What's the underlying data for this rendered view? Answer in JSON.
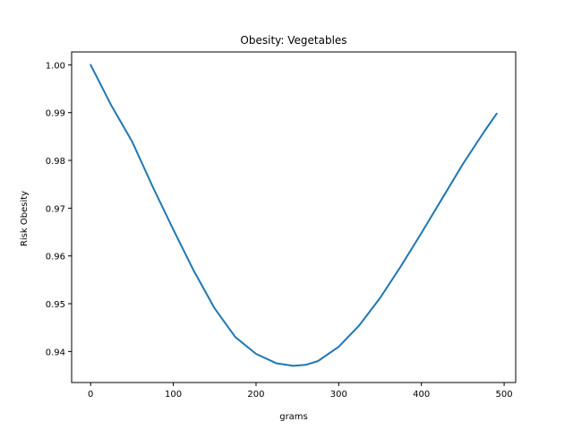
{
  "chart_data": {
    "type": "line",
    "title": "Obesity: Vegetables",
    "xlabel": "grams",
    "ylabel": "Risk Obesity",
    "xlim": [
      -23,
      514
    ],
    "ylim": [
      0.9335,
      1.0027
    ],
    "xticks": [
      0,
      100,
      200,
      300,
      400,
      500
    ],
    "xtick_labels": [
      "0",
      "100",
      "200",
      "300",
      "400",
      "500"
    ],
    "yticks": [
      0.94,
      0.95,
      0.96,
      0.97,
      0.98,
      0.99,
      1.0
    ],
    "ytick_labels": [
      "0.94",
      "0.95",
      "0.96",
      "0.97",
      "0.98",
      "0.99",
      "1.00"
    ],
    "grid": false,
    "series": [
      {
        "color": "#1f77b4",
        "x": [
          0,
          25,
          50,
          75,
          100,
          125,
          150,
          175,
          200,
          225,
          245,
          260,
          275,
          300,
          325,
          350,
          375,
          400,
          425,
          450,
          475,
          491
        ],
        "y": [
          1.0,
          0.9915,
          0.984,
          0.9745,
          0.9655,
          0.9568,
          0.949,
          0.943,
          0.9395,
          0.9375,
          0.937,
          0.9372,
          0.938,
          0.941,
          0.9455,
          0.9512,
          0.9578,
          0.9648,
          0.972,
          0.9792,
          0.9858,
          0.9898
        ]
      }
    ]
  }
}
